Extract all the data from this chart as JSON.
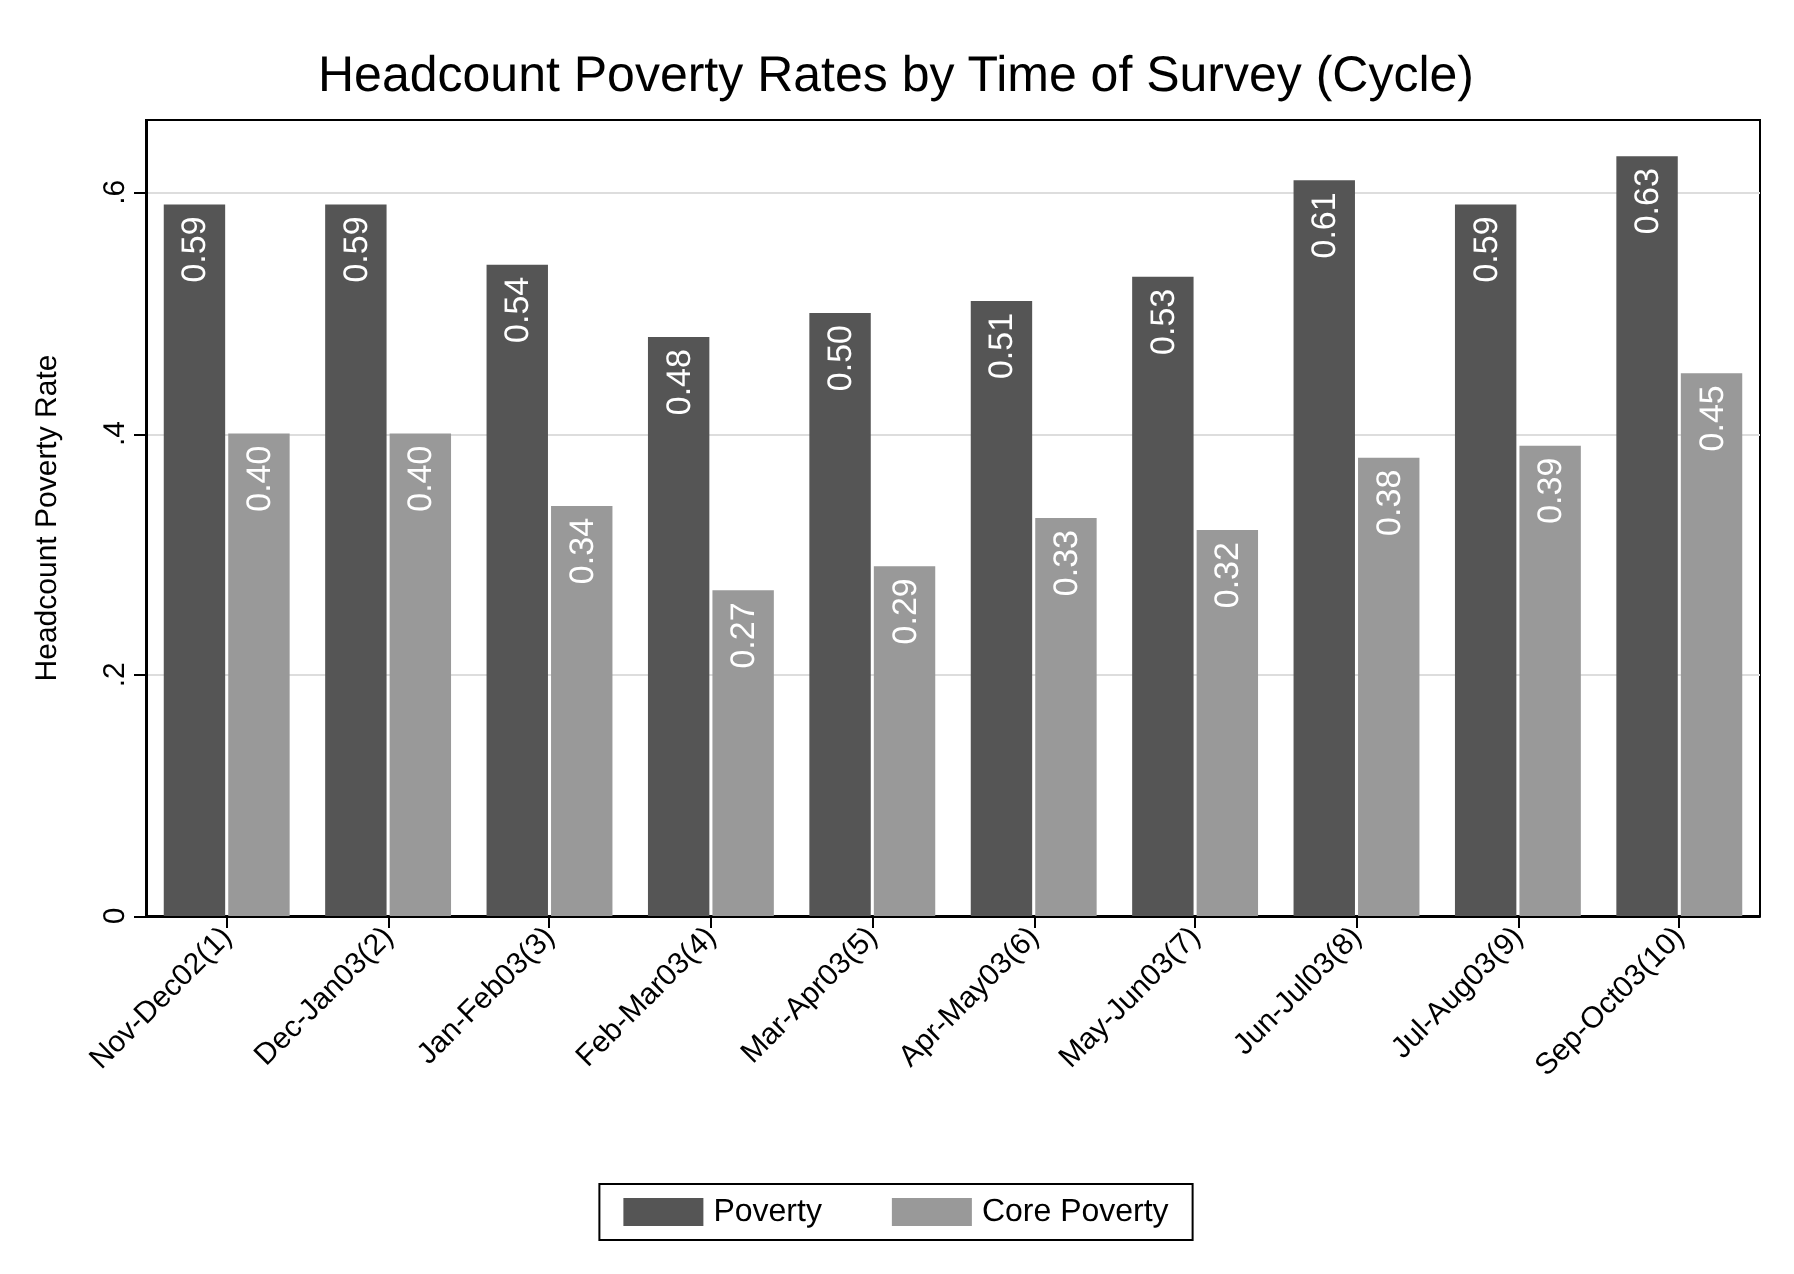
{
  "chart_data": {
    "type": "bar",
    "title": "Headcount Poverty Rates by Time of Survey (Cycle)",
    "ylabel": "Headcount Poverty Rate",
    "categories": [
      "Nov-Dec02(1)",
      "Dec-Jan03(2)",
      "Jan-Feb03(3)",
      "Feb-Mar03(4)",
      "Mar-Apr03(5)",
      "Apr-May03(6)",
      "May-Jun03(7)",
      "Jun-Jul03(8)",
      "Jul-Aug03(9)",
      "Sep-Oct03(10)"
    ],
    "series": [
      {
        "name": "Poverty",
        "color": "#555555",
        "values": [
          0.59,
          0.59,
          0.54,
          0.48,
          0.5,
          0.51,
          0.53,
          0.61,
          0.59,
          0.63
        ],
        "value_labels": [
          "0.59",
          "0.59",
          "0.54",
          "0.48",
          "0.50",
          "0.51",
          "0.53",
          "0.61",
          "0.59",
          "0.63"
        ]
      },
      {
        "name": "Core Poverty",
        "color": "#999999",
        "values": [
          0.4,
          0.4,
          0.34,
          0.27,
          0.29,
          0.33,
          0.32,
          0.38,
          0.39,
          0.45
        ],
        "value_labels": [
          "0.40",
          "0.40",
          "0.34",
          "0.27",
          "0.29",
          "0.33",
          "0.32",
          "0.38",
          "0.39",
          "0.45"
        ]
      }
    ],
    "ylim": [
      0,
      0.66
    ],
    "yticks": [
      {
        "value": 0,
        "label": "0"
      },
      {
        "value": 0.2,
        "label": ".2"
      },
      {
        "value": 0.4,
        "label": ".4"
      },
      {
        "value": 0.6,
        "label": ".6"
      }
    ],
    "grid": "y",
    "legend": "bottom"
  }
}
